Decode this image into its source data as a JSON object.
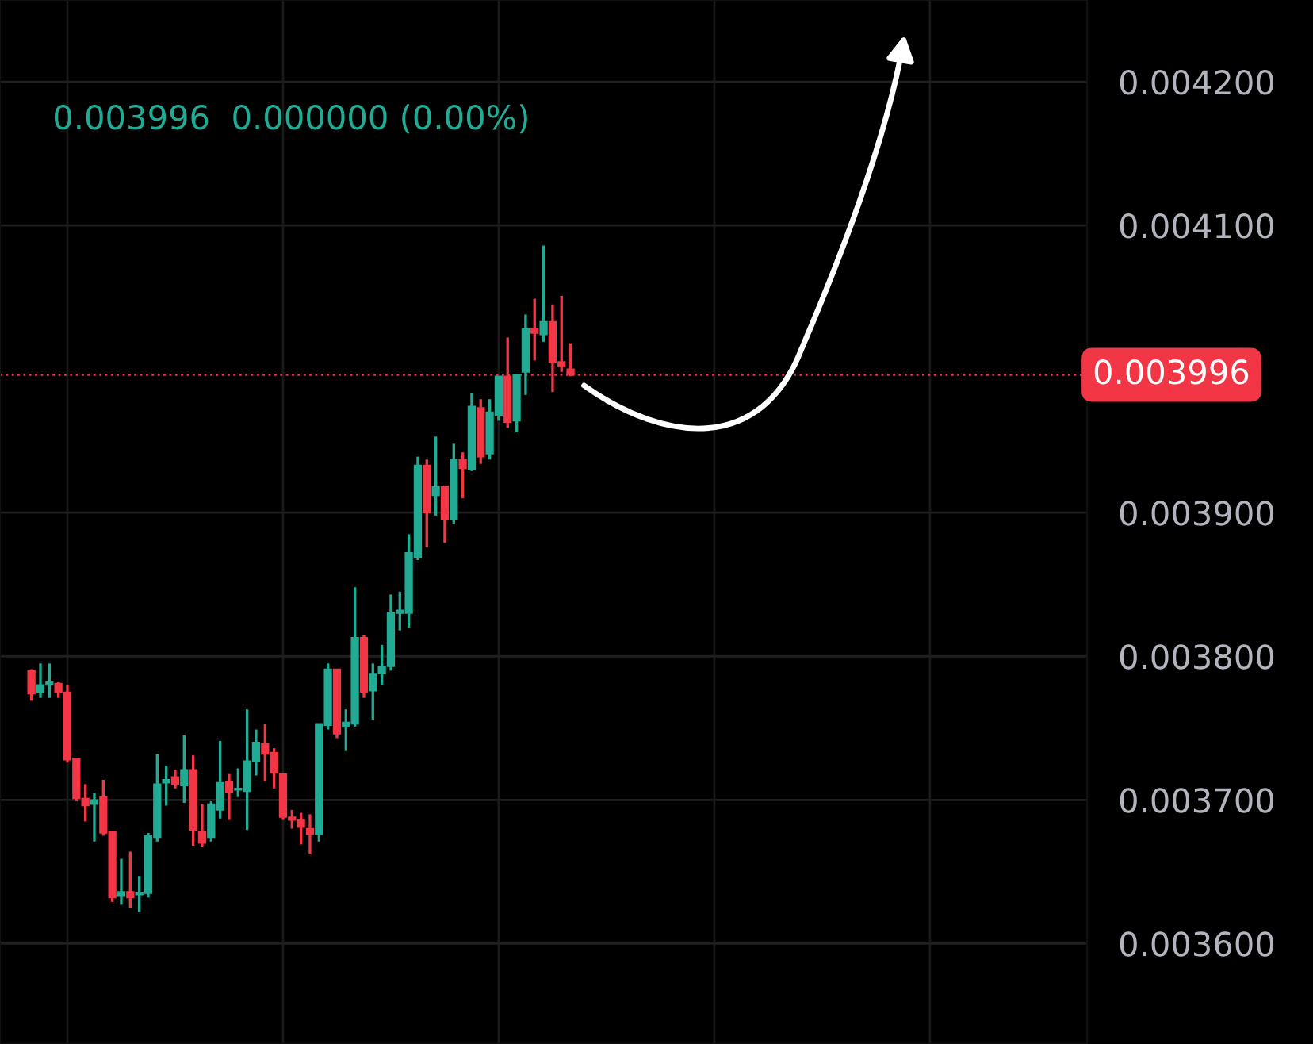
{
  "chart_data": {
    "type": "candlestick",
    "subtitle": "0.003996  0.000000 (0.00%)",
    "categories": [
      null,
      null,
      null,
      null,
      null,
      null,
      null,
      null,
      null,
      null,
      null,
      null,
      null,
      null,
      null,
      null,
      null,
      null,
      null,
      null,
      null,
      null,
      null,
      null,
      null,
      null,
      null,
      null,
      null,
      null,
      null,
      null,
      null,
      null,
      null,
      null,
      null,
      null,
      null,
      null,
      null,
      null,
      null,
      null,
      null,
      null,
      null,
      null,
      null,
      null,
      null,
      null,
      null,
      null,
      null,
      null,
      null,
      null,
      null,
      null,
      null,
      null,
      null,
      null,
      null,
      null,
      null,
      null,
      null,
      null,
      null,
      null,
      null,
      null,
      null,
      null,
      null,
      null,
      null,
      null,
      null,
      null,
      null,
      null,
      null,
      null,
      null,
      null,
      null,
      null,
      null,
      null,
      null,
      null,
      null,
      null,
      null,
      null,
      null,
      null,
      null,
      null,
      null,
      null,
      null,
      null,
      null,
      null,
      null,
      null,
      null,
      null,
      null,
      null,
      null,
      null,
      null,
      null,
      null,
      null,
      null
    ],
    "ohlc": [
      null,
      null,
      null,
      [
        0.00379,
        0.003791,
        0.003769,
        0.003774
      ],
      [
        0.003775,
        0.003795,
        0.003771,
        0.00378
      ],
      [
        0.00378,
        0.003795,
        0.003771,
        0.003782
      ],
      [
        0.003781,
        0.003782,
        0.003771,
        0.003775
      ],
      [
        0.003775,
        0.00378,
        0.003726,
        0.003728
      ],
      [
        0.003729,
        0.003729,
        0.003699,
        0.003701
      ],
      [
        0.003701,
        0.003711,
        0.003685,
        0.003696
      ],
      [
        0.003697,
        0.003705,
        0.003671,
        0.0037
      ],
      [
        0.003702,
        0.003714,
        0.003675,
        0.003677
      ],
      [
        0.003678,
        0.003678,
        0.003629,
        0.003632
      ],
      [
        0.003633,
        0.003659,
        0.003627,
        0.003636
      ],
      [
        0.003636,
        0.003664,
        0.003625,
        0.003632
      ],
      [
        0.003634,
        0.003647,
        0.003622,
        0.003635
      ],
      [
        0.003635,
        0.003677,
        0.003632,
        0.003675
      ],
      [
        0.003674,
        0.003732,
        0.003671,
        0.003711
      ],
      [
        0.003712,
        0.003724,
        0.003696,
        0.003714
      ],
      [
        0.003716,
        0.003721,
        0.003708,
        0.003711
      ],
      [
        0.00371,
        0.003745,
        0.003698,
        0.003721
      ],
      [
        0.003721,
        0.003731,
        0.003668,
        0.003679
      ],
      [
        0.003678,
        0.003697,
        0.003667,
        0.00367
      ],
      [
        0.003674,
        0.003699,
        0.003671,
        0.003697
      ],
      [
        0.003693,
        0.003741,
        0.003687,
        0.003712
      ],
      [
        0.003713,
        0.003718,
        0.003686,
        0.003705
      ],
      [
        0.003707,
        0.003722,
        0.003702,
        0.003708
      ],
      [
        0.003706,
        0.003763,
        0.003679,
        0.003727
      ],
      [
        0.003727,
        0.003749,
        0.003717,
        0.00374
      ],
      [
        0.003739,
        0.003753,
        0.003713,
        0.003732
      ],
      [
        0.003733,
        0.003736,
        0.003708,
        0.003719
      ],
      [
        0.003718,
        0.003718,
        0.003686,
        0.003688
      ],
      [
        0.003688,
        0.003693,
        0.00368,
        0.003686
      ],
      [
        0.003686,
        0.003691,
        0.003669,
        0.003681
      ],
      [
        0.00368,
        0.00369,
        0.003662,
        0.003676
      ],
      [
        0.003676,
        0.003753,
        0.003671,
        0.003753
      ],
      [
        0.003752,
        0.003795,
        0.003749,
        0.003791
      ],
      [
        0.003791,
        0.003791,
        0.003743,
        0.003746
      ],
      [
        0.003751,
        0.003763,
        0.003734,
        0.003754
      ],
      [
        0.003753,
        0.003848,
        0.003751,
        0.003813
      ],
      [
        0.003813,
        0.003815,
        0.003771,
        0.003775
      ],
      [
        0.003776,
        0.003795,
        0.003756,
        0.003788
      ],
      [
        0.003788,
        0.003808,
        0.00378,
        0.003793
      ],
      [
        0.003793,
        0.003843,
        0.00379,
        0.00383
      ],
      [
        0.00383,
        0.003845,
        0.003818,
        0.003832
      ],
      [
        0.00383,
        0.003885,
        0.00382,
        0.003872
      ],
      [
        0.003869,
        0.003939,
        0.003867,
        0.003933
      ],
      [
        0.003933,
        0.003937,
        0.003876,
        0.0039
      ],
      [
        0.003912,
        0.003953,
        0.003898,
        0.003918
      ],
      [
        0.003918,
        0.003919,
        0.003879,
        0.003895
      ],
      [
        0.003895,
        0.003948,
        0.003892,
        0.003937
      ],
      [
        0.003937,
        0.003942,
        0.00391,
        0.003931
      ],
      [
        0.00393,
        0.003983,
        0.003929,
        0.003974
      ],
      [
        0.003973,
        0.003979,
        0.003934,
        0.003939
      ],
      [
        0.003941,
        0.003979,
        0.003937,
        0.00397
      ],
      [
        0.003968,
        0.003995,
        0.003964,
        0.003995
      ],
      [
        0.003995,
        0.004022,
        0.003959,
        0.003963
      ],
      [
        0.003964,
        0.003996,
        0.003956,
        0.003996
      ],
      [
        0.003998,
        0.004038,
        0.003982,
        0.004028
      ],
      [
        0.004028,
        0.004049,
        0.004006,
        0.004025
      ],
      [
        0.004024,
        0.004086,
        0.004019,
        0.004033
      ],
      [
        0.004033,
        0.004045,
        0.003984,
        0.004005
      ],
      [
        0.004005,
        0.004051,
        0.003998,
        0.004002
      ],
      [
        0.004,
        0.004018,
        0.003995,
        0.003996
      ],
      null,
      null,
      null,
      null,
      null,
      null,
      null,
      null,
      null,
      null,
      null,
      null,
      null,
      null,
      null,
      null,
      null,
      null,
      null,
      null,
      null,
      null,
      null,
      null,
      null,
      null,
      null,
      null,
      null,
      null,
      null,
      null,
      null,
      null,
      null,
      null,
      null,
      null,
      null,
      null,
      null,
      null,
      null,
      null,
      null,
      null,
      null,
      null,
      null,
      null,
      null,
      null,
      null,
      null,
      null,
      null,
      null
    ],
    "ylim": [
      0.00353,
      0.004257
    ],
    "yticks": [
      {
        "value": 0.0036,
        "label": "0.003600"
      },
      {
        "value": 0.0037,
        "label": "0.003700"
      },
      {
        "value": 0.0038,
        "label": "0.003800"
      },
      {
        "value": 0.0039,
        "label": "0.003900"
      },
      {
        "value": 0.0041,
        "label": "0.004100"
      },
      {
        "value": 0.0042,
        "label": "0.004200"
      }
    ],
    "ref_lines": [
      {
        "axis": "y",
        "value": 0.003996,
        "label": "0.003996",
        "color": "#f23645",
        "line_style": "dotted"
      }
    ],
    "grid": true,
    "tick_labels": "y"
  }
}
